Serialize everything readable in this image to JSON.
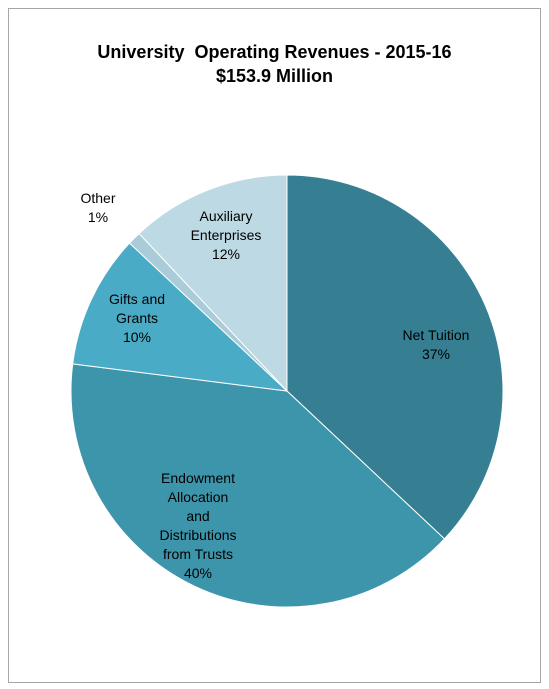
{
  "chart_data": {
    "type": "pie",
    "title": "University  Operating Revenues - 2015-16",
    "subtitle": "$153.9 Million",
    "slices": [
      {
        "label_lines": [
          "Net Tuition"
        ],
        "percent_label": "37%",
        "value": 37,
        "color": "#367f93"
      },
      {
        "label_lines": [
          "Endowment",
          "Allocation",
          "and",
          "Distributions",
          "from Trusts"
        ],
        "percent_label": "40%",
        "value": 40,
        "color": "#3d95ab"
      },
      {
        "label_lines": [
          "Gifts and",
          "Grants"
        ],
        "percent_label": "10%",
        "value": 10,
        "color": "#4aabc6"
      },
      {
        "label_lines": [
          "Other"
        ],
        "percent_label": "1%",
        "value": 1,
        "color": "#a9ccd8"
      },
      {
        "label_lines": [
          "Auxiliary",
          "Enterprises"
        ],
        "percent_label": "12%",
        "value": 12,
        "color": "#bcd9e4"
      }
    ]
  }
}
